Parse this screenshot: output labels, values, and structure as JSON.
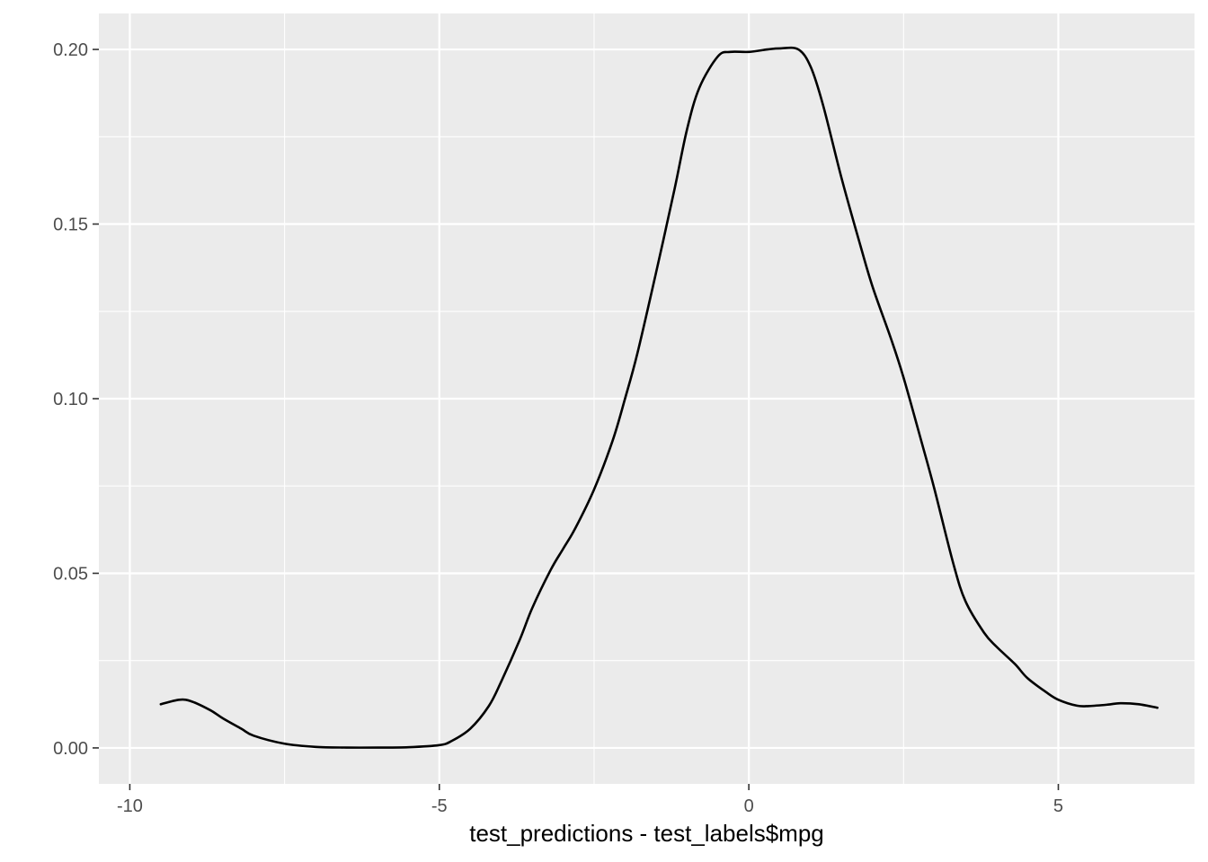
{
  "chart_data": {
    "type": "area",
    "title": "",
    "xlabel": "test_predictions - test_labels$mpg",
    "ylabel": "",
    "xlim": [
      -10.5,
      7.2
    ],
    "ylim": [
      -0.0103,
      0.2103
    ],
    "x_major_ticks": [
      -10,
      -5,
      0,
      5
    ],
    "x_tick_labels": [
      "-10",
      "-5",
      "0",
      "5"
    ],
    "x_minor_ticks": [
      -7.5,
      -2.5,
      2.5
    ],
    "y_major_ticks": [
      0.0,
      0.05,
      0.1,
      0.15,
      0.2
    ],
    "y_tick_labels": [
      "0.00",
      "0.05",
      "0.10",
      "0.15",
      "0.20"
    ],
    "y_minor_ticks": [
      0.025,
      0.075,
      0.125,
      0.175
    ],
    "grid": true,
    "legend": "none",
    "colors": {
      "panel_background": "#ebebeb",
      "grid_line": "#ffffff",
      "curve": "#000000",
      "tick_label": "#4d4d4d",
      "tick_mark": "#333333"
    },
    "series": [
      {
        "x": [
          -9.5,
          -9.2,
          -9.0,
          -8.7,
          -8.5,
          -8.2,
          -8.0,
          -7.5,
          -7.0,
          -6.5,
          -6.0,
          -5.5,
          -5.0,
          -4.8,
          -4.5,
          -4.2,
          -4.0,
          -3.7,
          -3.5,
          -3.2,
          -3.0,
          -2.8,
          -2.5,
          -2.2,
          -2.0,
          -1.8,
          -1.5,
          -1.2,
          -1.0,
          -0.8,
          -0.5,
          -0.3,
          0.0,
          0.3,
          0.5,
          0.8,
          1.0,
          1.2,
          1.5,
          1.8,
          2.0,
          2.3,
          2.5,
          2.8,
          3.0,
          3.3,
          3.5,
          3.8,
          4.0,
          4.3,
          4.5,
          4.8,
          5.0,
          5.3,
          5.5,
          5.8,
          6.0,
          6.3,
          6.6
        ],
        "y": [
          0.0125,
          0.0138,
          0.0133,
          0.0108,
          0.0085,
          0.0055,
          0.0035,
          0.0012,
          0.0003,
          0.0001,
          0.0001,
          0.0002,
          0.0008,
          0.002,
          0.0055,
          0.012,
          0.019,
          0.031,
          0.04,
          0.051,
          0.057,
          0.063,
          0.074,
          0.088,
          0.1,
          0.113,
          0.136,
          0.16,
          0.177,
          0.189,
          0.198,
          0.1993,
          0.1993,
          0.2,
          0.2003,
          0.2,
          0.195,
          0.184,
          0.163,
          0.144,
          0.132,
          0.117,
          0.106,
          0.087,
          0.074,
          0.053,
          0.042,
          0.033,
          0.029,
          0.024,
          0.02,
          0.016,
          0.0138,
          0.0121,
          0.012,
          0.0124,
          0.0128,
          0.0125,
          0.0115
        ]
      }
    ]
  }
}
